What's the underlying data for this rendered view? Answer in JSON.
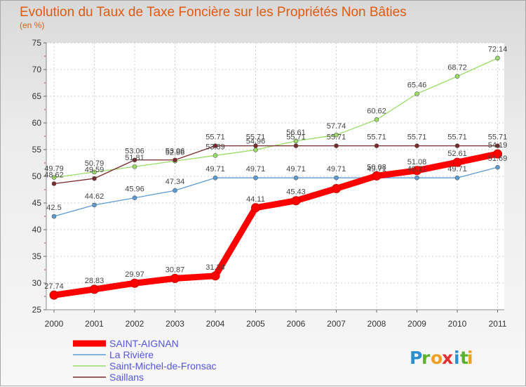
{
  "chart_data": {
    "type": "line",
    "title": "Evolution du Taux de Taxe Foncière sur les Propriétés Non Bâties",
    "subtitle": "(en %)",
    "xlabel": "",
    "ylabel": "",
    "ylim": [
      25,
      75
    ],
    "yticks": [
      25,
      30,
      35,
      40,
      45,
      50,
      55,
      60,
      65,
      70,
      75
    ],
    "x": [
      "2000",
      "2001",
      "2002",
      "2003",
      "2004",
      "2005",
      "2006",
      "2007",
      "2008",
      "2009",
      "2010",
      "2011"
    ],
    "grid": true,
    "legend_position": "bottom-left",
    "series": [
      {
        "name": "SAINT-AIGNAN",
        "color": "#ff0000",
        "values": [
          27.74,
          28.83,
          29.97,
          30.87,
          31.34,
          44.11,
          45.43,
          47.7,
          50.08,
          51.08,
          52.61,
          54.19
        ],
        "labels": [
          "27.74",
          "28.83",
          "29.97",
          "30.87",
          "31.34",
          "44.11",
          "45.43",
          "",
          "50.08",
          "51.08",
          "52.61",
          "54.19"
        ]
      },
      {
        "name": "La Rivière",
        "color": "#5b9bd5",
        "values": [
          42.5,
          44.62,
          45.96,
          47.34,
          49.71,
          49.71,
          49.71,
          49.71,
          49.71,
          49.71,
          49.71,
          51.69
        ],
        "labels": [
          "42.5",
          "44.62",
          "45.96",
          "47.34",
          "49.71",
          "49.71",
          "49.71",
          "49.71",
          "49.71",
          "49.71",
          "49.71",
          "51.69"
        ]
      },
      {
        "name": "Saint-Michel-de-Fronsac",
        "color": "#99dd66",
        "values": [
          49.79,
          50.79,
          51.81,
          52.86,
          53.89,
          54.96,
          56.61,
          57.74,
          60.62,
          65.46,
          68.72,
          72.14
        ],
        "labels": [
          "49.79",
          "50.79",
          "51.81",
          "52.86",
          "53.89",
          "54.96",
          "56.61",
          "57.74",
          "60.62",
          "65.46",
          "68.72",
          "72.14"
        ]
      },
      {
        "name": "Saillans",
        "color": "#7a2a2a",
        "values": [
          48.62,
          49.59,
          53.06,
          53.06,
          55.71,
          55.71,
          55.71,
          55.71,
          55.71,
          55.71,
          55.71,
          55.71
        ],
        "labels": [
          "48.62",
          "49.59",
          "53.06",
          "53.06",
          "55.71",
          "55.71",
          "55.71",
          "55.71",
          "55.71",
          "55.71",
          "55.71",
          "55.71"
        ]
      }
    ]
  },
  "logo": {
    "text": "Proxiti",
    "letters": [
      "P",
      "r",
      "o",
      "x",
      "i",
      "t",
      "i"
    ],
    "colors": [
      "#2b8fd0",
      "#5cb030",
      "#f0a020",
      "#e03030",
      "#2b8fd0",
      "#5cb030",
      "#f0a020"
    ]
  }
}
